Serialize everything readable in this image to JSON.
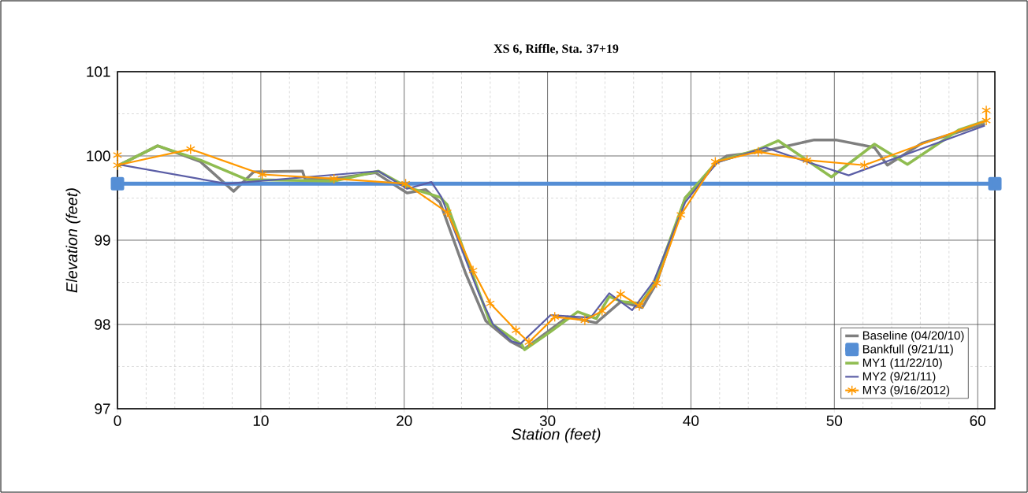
{
  "chart_data": {
    "type": "line",
    "title": "XS 6, Riffle, Sta. 37+19",
    "xlabel": "Station (feet)",
    "ylabel": "Elevation (feet)",
    "xlim": [
      0,
      61.2
    ],
    "ylim": [
      97,
      101
    ],
    "xticks": [
      0,
      10,
      20,
      30,
      40,
      50,
      60
    ],
    "yticks": [
      97,
      98,
      99,
      100,
      101
    ],
    "grid": true,
    "legend": "bottom right",
    "series": [
      {
        "name": "Baseline (04/20/10)",
        "color": "#7f7f7f",
        "marker": "none",
        "x": [
          0,
          2.8,
          5.8,
          8.1,
          9.5,
          12.9,
          13.1,
          15,
          18,
          20.2,
          21.5,
          22.5,
          24.3,
          25.7,
          27.4,
          28.4,
          31.4,
          33.4,
          35.1,
          36.6,
          37.6,
          39.6,
          41.8,
          42.5,
          44.9,
          48.6,
          50.1,
          52.8,
          53.7,
          56.1,
          60.5
        ],
        "values": [
          99.88,
          100.12,
          99.93,
          99.58,
          99.81,
          99.82,
          99.72,
          99.73,
          99.8,
          99.56,
          99.6,
          99.45,
          98.6,
          98.04,
          97.8,
          97.71,
          98.09,
          98.02,
          98.27,
          98.2,
          98.49,
          99.5,
          99.92,
          100.0,
          100.05,
          100.19,
          100.19,
          100.1,
          99.89,
          100.15,
          100.38
        ]
      },
      {
        "name": "Bankfull (9/21/11)",
        "color": "#558ed5",
        "marker": "square",
        "x": [
          0,
          61.2
        ],
        "values": [
          99.67,
          99.67
        ]
      },
      {
        "name": "MY1 (11/22/10)",
        "color": "#8fbc50",
        "marker": "none",
        "x": [
          0,
          2.8,
          5.8,
          9.0,
          15.1,
          18.2,
          20.2,
          22.5,
          23.0,
          26.0,
          28.2,
          28.4,
          30.1,
          32.1,
          33.4,
          34.3,
          35.2,
          36.5,
          37.4,
          39.6,
          41.8,
          44.6,
          46.1,
          49.8,
          52.8,
          55.1,
          58.7,
          60.6
        ],
        "values": [
          99.88,
          100.12,
          99.95,
          99.72,
          99.7,
          99.82,
          99.63,
          99.51,
          99.42,
          98.02,
          97.76,
          97.7,
          97.9,
          98.15,
          98.07,
          98.33,
          98.27,
          98.25,
          98.47,
          99.5,
          99.93,
          100.07,
          100.18,
          99.75,
          100.14,
          99.9,
          100.31,
          100.42
        ]
      },
      {
        "name": "MY2 (9/21/11)",
        "color": "#5b5ea6",
        "marker": "none",
        "x": [
          0,
          7.6,
          18.2,
          20.2,
          21.9,
          22.6,
          25.2,
          26.2,
          27.5,
          28.1,
          30.2,
          33.0,
          34.3,
          35.9,
          37.4,
          39.6,
          41.8,
          45.2,
          48.1,
          51.0,
          60.5
        ],
        "values": [
          99.9,
          99.67,
          99.82,
          99.61,
          99.69,
          99.51,
          98.37,
          98.0,
          97.8,
          97.77,
          98.11,
          98.08,
          98.37,
          98.17,
          98.51,
          99.45,
          99.92,
          100.1,
          99.93,
          99.77,
          100.36
        ]
      },
      {
        "name": "MY3 (9/16/2012)",
        "color": "#ff9900",
        "marker": "cross",
        "x": [
          0,
          0,
          5.1,
          10.1,
          15.1,
          20.1,
          23.0,
          24.8,
          26.0,
          27.8,
          28.7,
          30.5,
          32.6,
          33.8,
          35.1,
          36.4,
          37.6,
          39.3,
          41.7,
          44.7,
          48.1,
          52.1,
          60.6,
          60.6
        ],
        "values": [
          100.01,
          99.89,
          100.08,
          99.78,
          99.73,
          99.67,
          99.33,
          98.64,
          98.25,
          97.93,
          97.79,
          98.09,
          98.05,
          98.16,
          98.36,
          98.22,
          98.49,
          99.3,
          99.93,
          100.05,
          99.95,
          99.89,
          100.42,
          100.54
        ]
      }
    ]
  }
}
